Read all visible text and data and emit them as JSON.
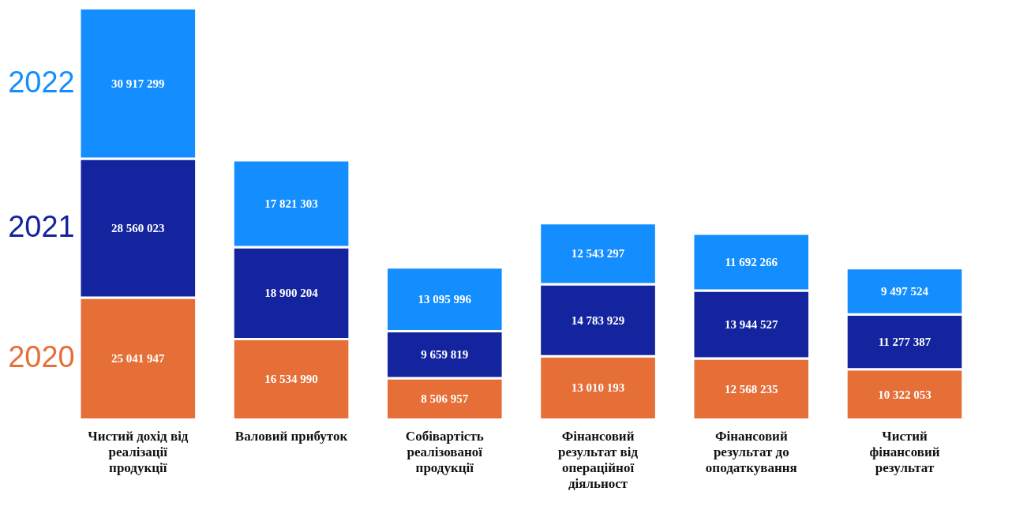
{
  "chart_data": {
    "type": "bar",
    "stacked": true,
    "categories": [
      "Чистий дохід від реалізації продукції",
      "Валовий прибуток",
      "Собівартість реалізованої продукції",
      "Фінансовий результат від операційної діяльност",
      "Фінансовий результат до оподаткування",
      "Чистий фінансовий результат"
    ],
    "series": [
      {
        "name": "2020",
        "color": "#e66f38",
        "values": [
          25041947,
          16534990,
          8506957,
          13010193,
          12568235,
          10322053
        ],
        "value_labels": [
          "25 041 947",
          "16 534 990",
          "8 506 957",
          "13 010 193",
          "12 568 235",
          "10 322 053"
        ]
      },
      {
        "name": "2021",
        "color": "#13249e",
        "values": [
          28560023,
          18900204,
          9659819,
          14783929,
          13944527,
          11277387
        ],
        "value_labels": [
          "28 560 023",
          "18 900 204",
          "9 659 819",
          "14 783 929",
          "13 944 527",
          "11 277 387"
        ]
      },
      {
        "name": "2022",
        "color": "#148eff",
        "values": [
          30917299,
          17821303,
          13095996,
          12543297,
          11692266,
          9497524
        ],
        "value_labels": [
          "30 917 299",
          "17 821 303",
          "13 095 996",
          "12 543 297",
          "11 692 266",
          "9 497 524"
        ]
      }
    ]
  }
}
